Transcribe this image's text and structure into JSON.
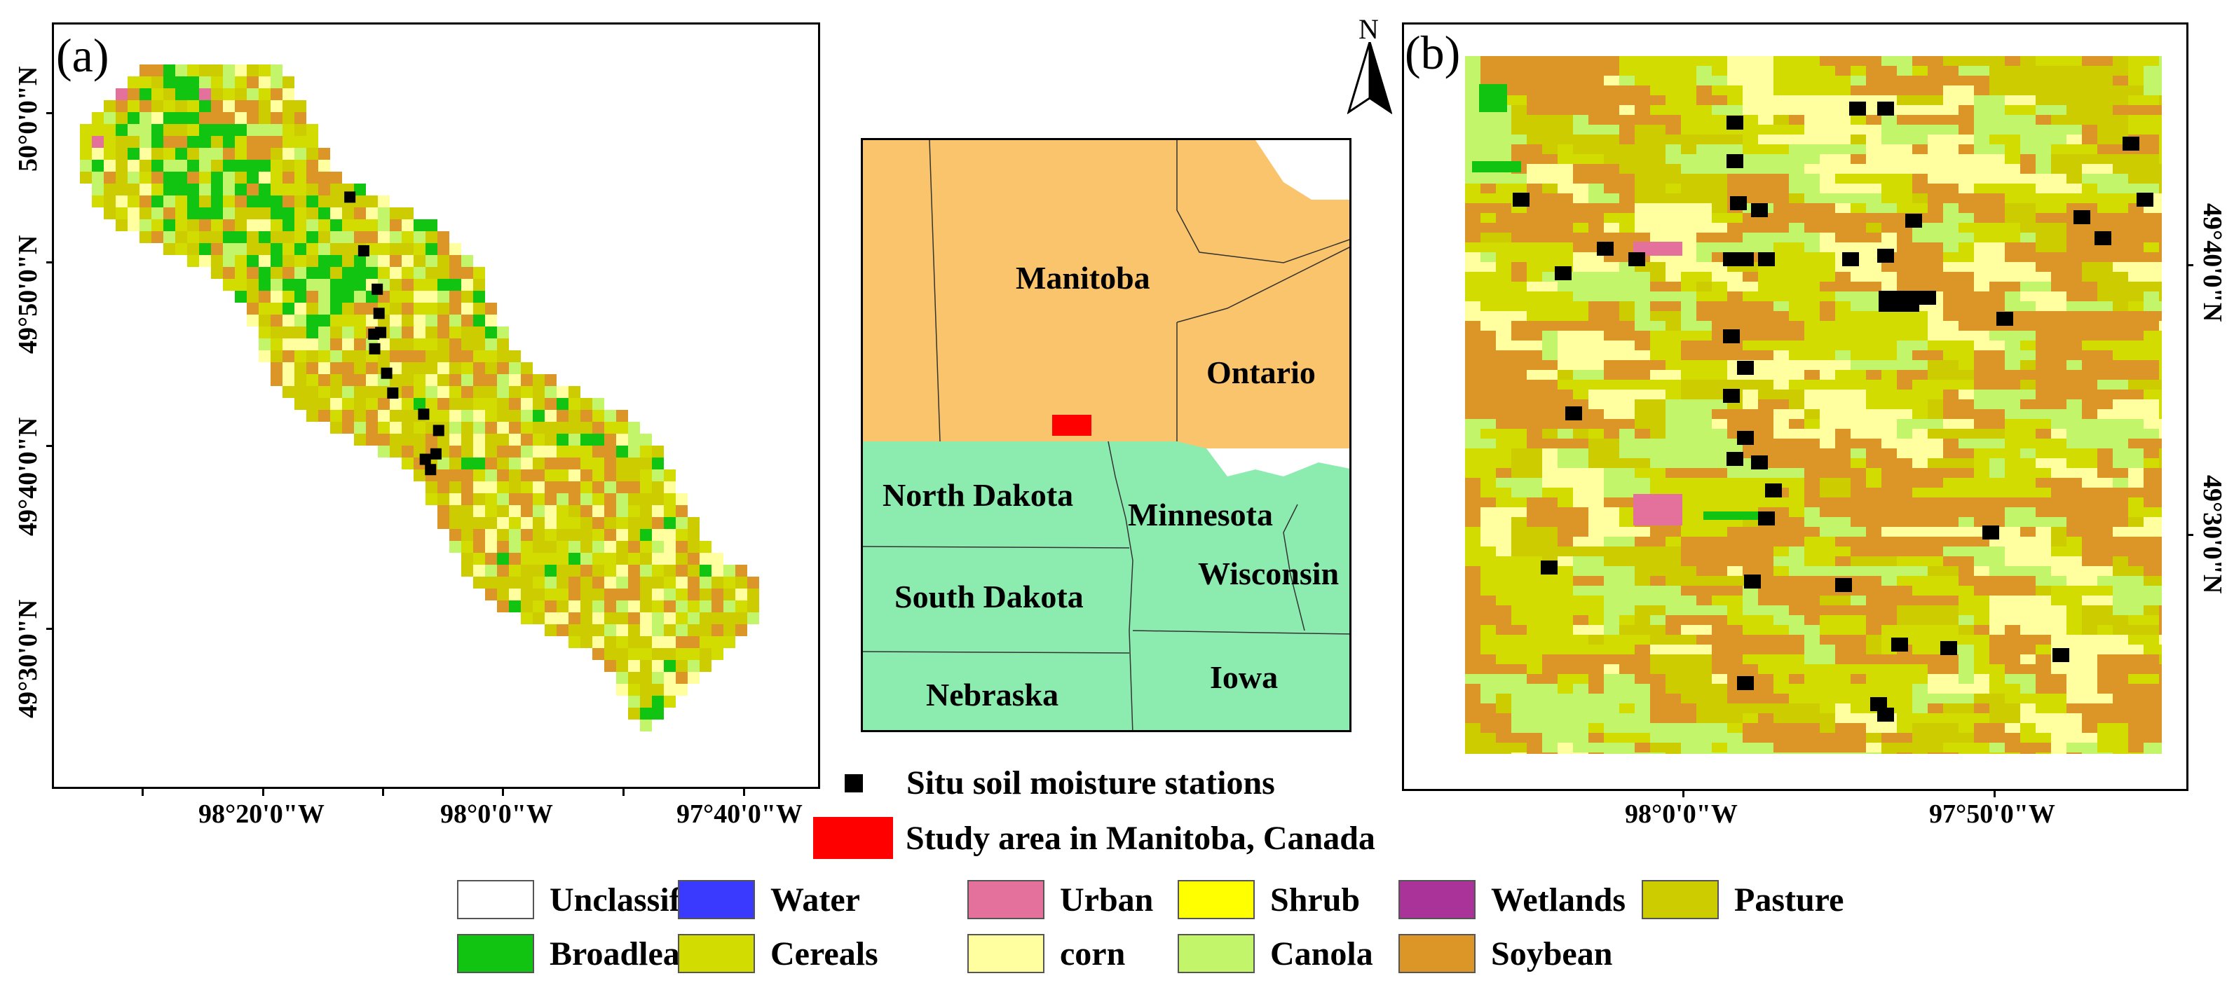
{
  "panel_a": {
    "label": "(a)",
    "lat_labels": [
      "50°0'0\"N",
      "49°50'0\"N",
      "49°40'0\"N",
      "49°30'0\"N"
    ],
    "lon_labels": [
      "98°20'0\"W",
      "98°0'0\"W",
      "97°40'0\"W"
    ]
  },
  "panel_b": {
    "label": "(b)",
    "lat_labels": [
      "49°40'0\"N",
      "49°30'0\"N"
    ],
    "lon_labels": [
      "98°0'0\"W",
      "97°50'0\"W"
    ]
  },
  "north_arrow": {
    "letter": "N"
  },
  "inset": {
    "regions": [
      "Manitoba",
      "Ontario",
      "North Dakota",
      "Minnesota",
      "Wisconsin",
      "South Dakota",
      "Iowa",
      "Nebraska"
    ],
    "canada_color": "#fac46c",
    "usa_color": "#8cecb0",
    "study_area_color": "#ff0000"
  },
  "legend_top": [
    {
      "label": "Situ soil moisture stations",
      "color": "#000000",
      "icon": "black-square-icon"
    },
    {
      "label": "Study area  in Manitoba, Canada",
      "color": "#ff0000",
      "icon": "red-rectangle-icon"
    }
  ],
  "legend_classes": [
    {
      "label": "Unclassified",
      "color": "#ffffff"
    },
    {
      "label": "Water",
      "color": "#3a3aff"
    },
    {
      "label": "Urban",
      "color": "#e4709c"
    },
    {
      "label": "Shrub",
      "color": "#ffff00"
    },
    {
      "label": "Wetlands",
      "color": "#aa3399"
    },
    {
      "label": "Pasture",
      "color": "#cccc00"
    },
    {
      "label": "Broadleaf",
      "color": "#11c411"
    },
    {
      "label": "Cereals",
      "color": "#d2dc00"
    },
    {
      "label": "corn",
      "color": "#ffffa0"
    },
    {
      "label": "Canola",
      "color": "#c2f56a"
    },
    {
      "label": "Soybean",
      "color": "#dc9628"
    }
  ]
}
